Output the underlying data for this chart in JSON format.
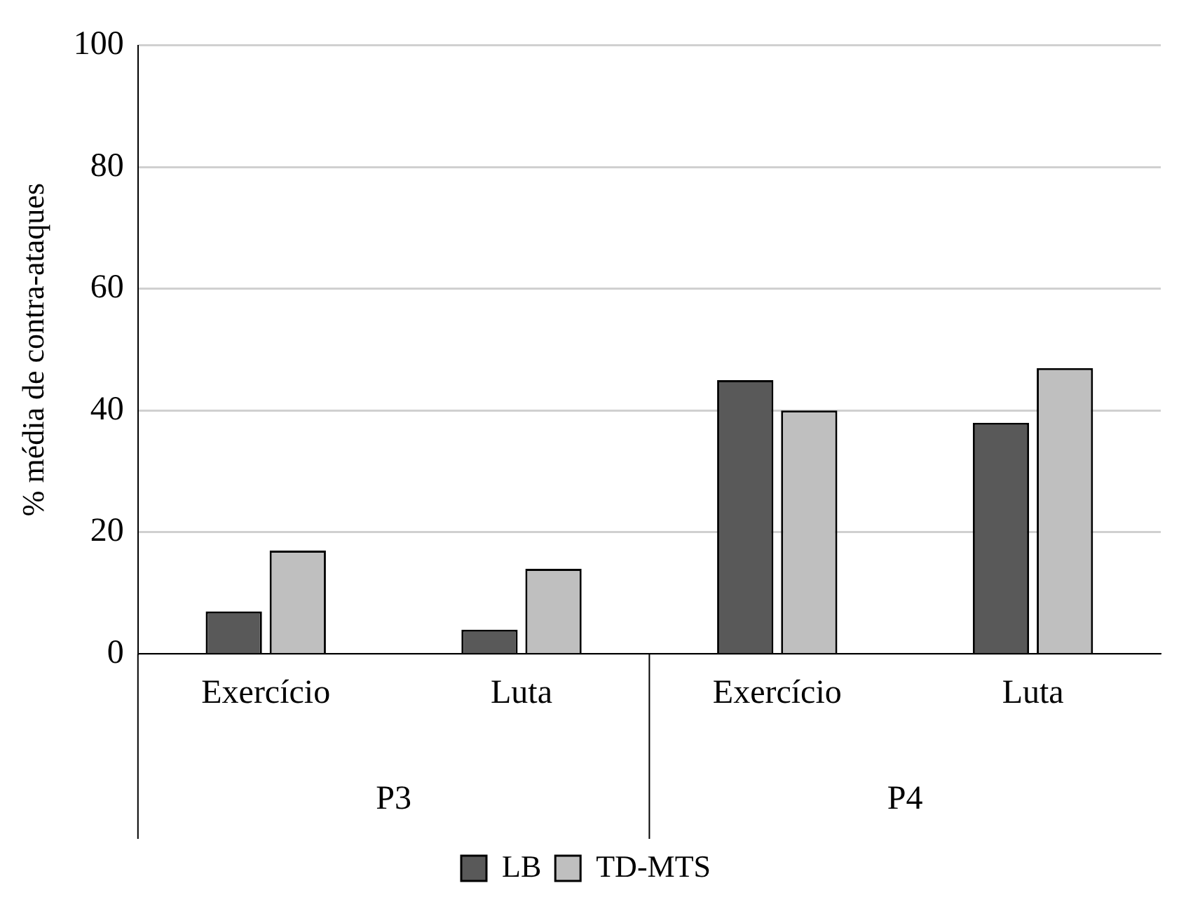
{
  "chart_data": {
    "type": "bar",
    "ylabel": "% média de contra-ataques",
    "categories": [
      "Exercício",
      "Luta",
      "Exercício",
      "Luta"
    ],
    "series": [
      {
        "name": "LB",
        "color": "#595959",
        "values": [
          7,
          4,
          45,
          38
        ]
      },
      {
        "name": "TD-MTS",
        "color": "#bfbfbf",
        "values": [
          17,
          14,
          40,
          47
        ]
      }
    ],
    "annotations": [
      "P3",
      "P4"
    ],
    "ylim": [
      0,
      100
    ],
    "yticks": [
      0,
      20,
      40,
      60,
      80,
      100
    ],
    "grid": "y",
    "legend": "bottom"
  }
}
